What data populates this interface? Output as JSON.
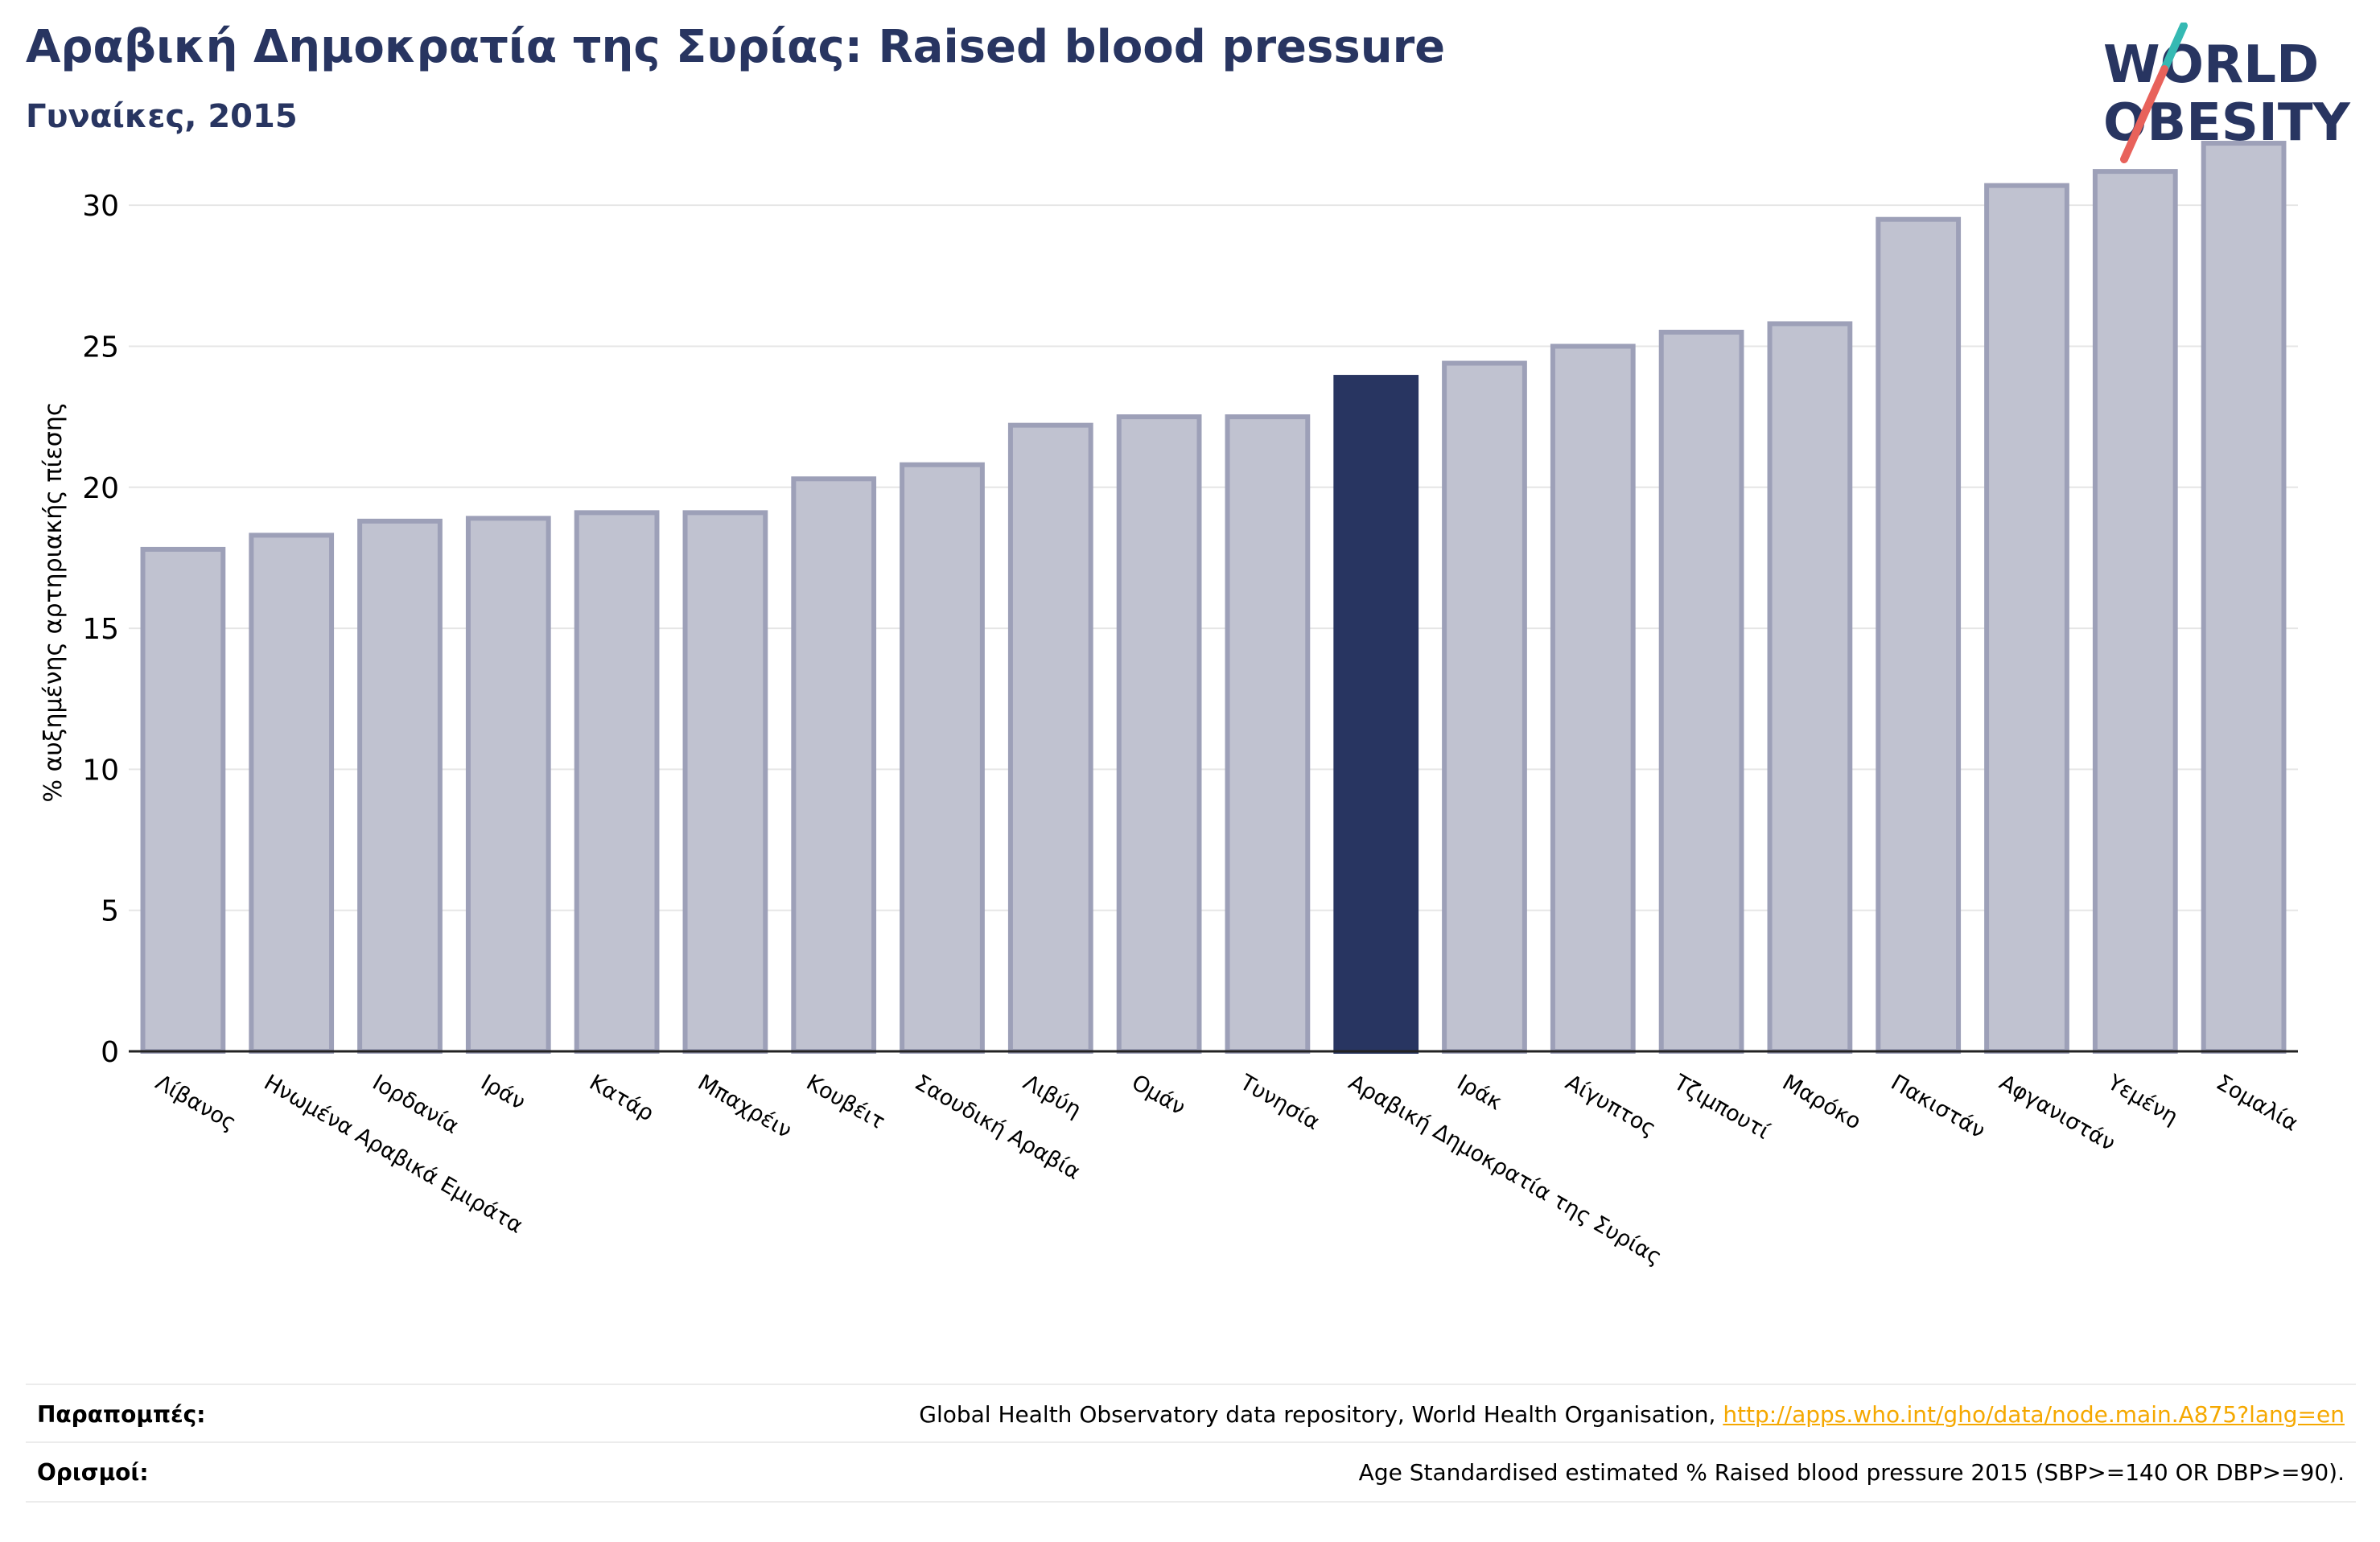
{
  "title": "Αραβική Δημοκρατία της Συρίας: Raised blood pressure",
  "subtitle": "Γυναίκες, 2015",
  "logo": {
    "line1": "WORLD",
    "line2": "OBESITY"
  },
  "colors": {
    "title": "#283561",
    "bar": "#c0c2d0",
    "bar_stroke": "#9da0b8",
    "highlight": "#283561",
    "accent_teal": "#35b9b3",
    "accent_red": "#e8625b",
    "link": "#f5a800"
  },
  "chart_data": {
    "type": "bar",
    "ylabel": "% αυξημένης αρτηριακής πίεσης",
    "ylim": [
      0,
      33
    ],
    "yticks": [
      0,
      5,
      10,
      15,
      20,
      25,
      30
    ],
    "grid": true,
    "highlight_category": "Αραβική Δημοκρατία της Συρίας",
    "categories": [
      "Λίβανος",
      "Ηνωμένα Αραβικά Εμιράτα",
      "Ιορδανία",
      "Ιράν",
      "Κατάρ",
      "Μπαχρέιν",
      "Κουβέιτ",
      "Σαουδική Αραβία",
      "Λιβύη",
      "Ομάν",
      "Τυνησία",
      "Αραβική Δημοκρατία της Συρίας",
      "Ιράκ",
      "Αίγυπτος",
      "Τζιμπουτί",
      "Μαρόκο",
      "Πακιστάν",
      "Αφγανιστάν",
      "Υεμένη",
      "Σομαλία"
    ],
    "values": [
      17.8,
      18.3,
      18.8,
      18.9,
      19.1,
      19.1,
      20.3,
      20.8,
      22.2,
      22.5,
      22.5,
      23.9,
      24.4,
      25.0,
      25.5,
      25.8,
      29.5,
      30.7,
      31.2,
      32.2
    ]
  },
  "references": {
    "label": "Παραπομπές:",
    "text": "Global Health Observatory data repository, World Health Organisation, ",
    "link": "http://apps.who.int/gho/data/node.main.A875?lang=en"
  },
  "definitions": {
    "label": "Ορισμοί:",
    "text": "Age Standardised estimated % Raised blood pressure 2015 (SBP>=140 OR DBP>=90)."
  }
}
